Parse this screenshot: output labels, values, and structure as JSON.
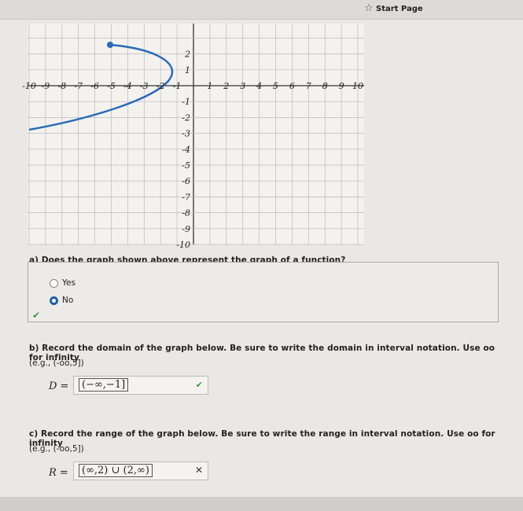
{
  "header": {
    "title": "Start Page"
  },
  "graph": {
    "x_labels": [
      "-10",
      "-9",
      "-8",
      "-7",
      "-6",
      "-5",
      "-4",
      "-3",
      "-2",
      "-1",
      "1",
      "2",
      "3",
      "4",
      "5",
      "6",
      "7",
      "8",
      "9",
      "10"
    ],
    "y_labels": [
      "2",
      "1",
      "-1",
      "-2",
      "-3",
      "-4",
      "-5",
      "-6",
      "-7",
      "-8",
      "-9",
      "-10"
    ]
  },
  "question_a": {
    "text": "a) Does the graph shown above represent the graph of a function?",
    "options": [
      "Yes",
      "No"
    ]
  },
  "question_b": {
    "text": "b) Record the domain of the graph below. Be sure to write the domain in interval notation. Use oo for infinity",
    "example": "(e.g., (-oo,5])",
    "label": "D =",
    "answer": "(−∞,−1]"
  },
  "question_c": {
    "text": "c) Record the range of the graph below. Be sure to write the range in interval notation. Use oo for infinity",
    "example": "(e.g., (-oo,5])",
    "label": "R =",
    "answer": "(∞,2) ∪ (2,∞)"
  }
}
